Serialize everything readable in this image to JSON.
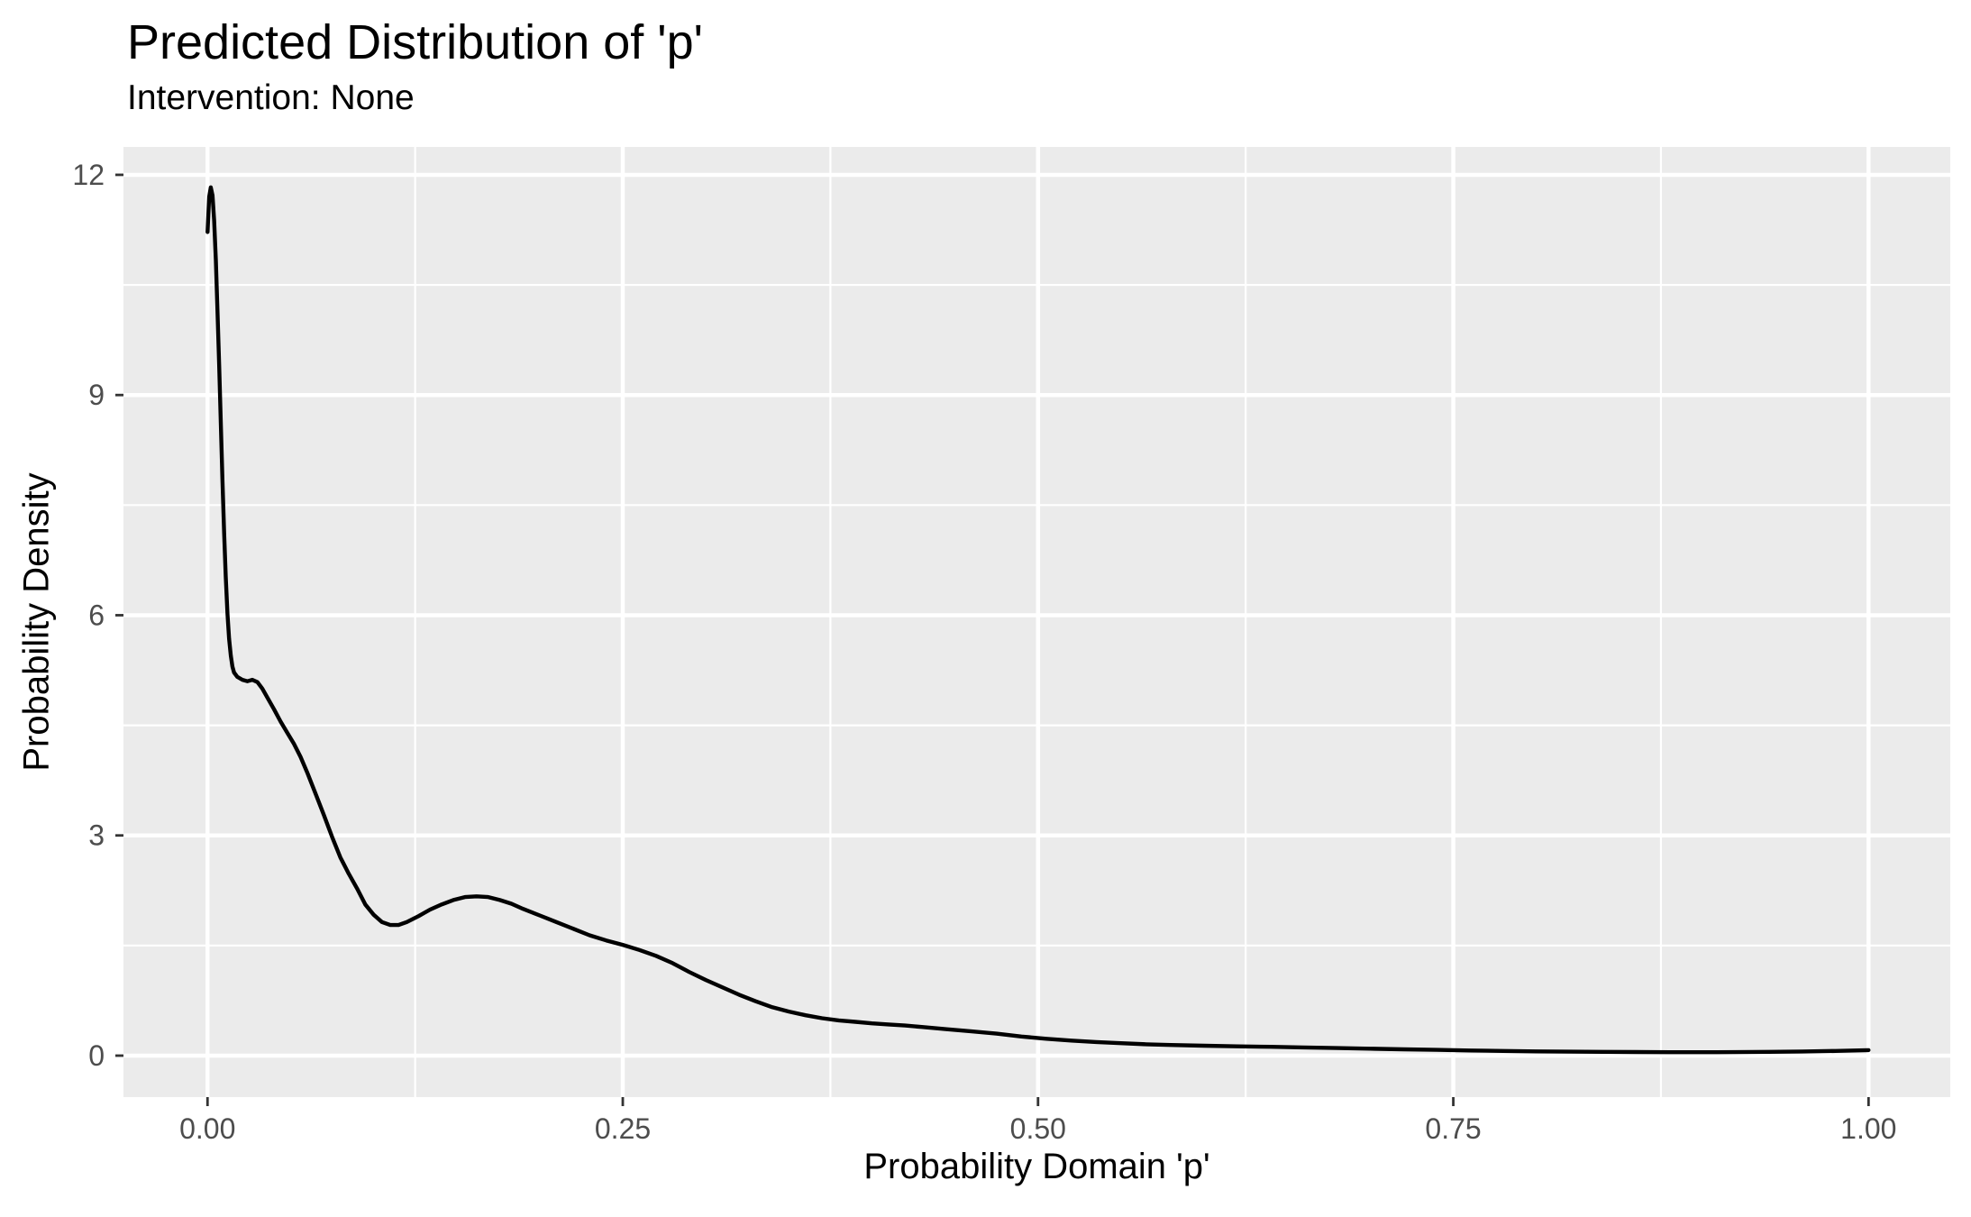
{
  "chart_data": {
    "type": "line",
    "style": "kernel-density-curve",
    "title": "Predicted Distribution of 'p'",
    "subtitle": "Intervention: None",
    "xlabel": "Probability Domain 'p'",
    "ylabel": "Probability Density",
    "legend": "none",
    "grid": "major+minor",
    "xlim": [
      -0.0506,
      1.0492
    ],
    "ylim": [
      -0.565,
      12.38
    ],
    "x_axis": {
      "tick_values": [
        0,
        0.25,
        0.5,
        0.75,
        1.0
      ],
      "tick_labels": [
        "0.00",
        "0.25",
        "0.50",
        "0.75",
        "1.00"
      ],
      "minor_tick_values": [
        0.125,
        0.375,
        0.625,
        0.875
      ]
    },
    "y_axis": {
      "tick_values": [
        0,
        3,
        6,
        9,
        12
      ],
      "tick_labels": [
        "0",
        "3",
        "6",
        "9",
        "12"
      ],
      "minor_tick_values": [
        1.5,
        4.5,
        7.5,
        10.5
      ]
    },
    "colors": {
      "panel_background": "#EBEBEB",
      "gridline": "#FFFFFF",
      "curve": "#000000",
      "tick_mark": "#333333",
      "tick_label": "#4D4D4D",
      "title_text": "#000000"
    },
    "series": [
      {
        "name": "density",
        "points": [
          [
            0.0,
            11.22
          ],
          [
            0.001,
            11.7
          ],
          [
            0.002,
            11.83
          ],
          [
            0.003,
            11.72
          ],
          [
            0.004,
            11.38
          ],
          [
            0.005,
            10.84
          ],
          [
            0.006,
            10.15
          ],
          [
            0.007,
            9.4
          ],
          [
            0.008,
            8.62
          ],
          [
            0.009,
            7.85
          ],
          [
            0.01,
            7.12
          ],
          [
            0.011,
            6.52
          ],
          [
            0.012,
            6.02
          ],
          [
            0.013,
            5.68
          ],
          [
            0.014,
            5.45
          ],
          [
            0.015,
            5.3
          ],
          [
            0.016,
            5.22
          ],
          [
            0.018,
            5.16
          ],
          [
            0.021,
            5.12
          ],
          [
            0.024,
            5.1
          ],
          [
            0.027,
            5.12
          ],
          [
            0.03,
            5.09
          ],
          [
            0.033,
            5.0
          ],
          [
            0.036,
            4.88
          ],
          [
            0.04,
            4.72
          ],
          [
            0.044,
            4.55
          ],
          [
            0.048,
            4.4
          ],
          [
            0.052,
            4.25
          ],
          [
            0.056,
            4.07
          ],
          [
            0.06,
            3.86
          ],
          [
            0.065,
            3.57
          ],
          [
            0.07,
            3.28
          ],
          [
            0.075,
            2.98
          ],
          [
            0.08,
            2.7
          ],
          [
            0.085,
            2.48
          ],
          [
            0.09,
            2.28
          ],
          [
            0.095,
            2.06
          ],
          [
            0.1,
            1.92
          ],
          [
            0.105,
            1.82
          ],
          [
            0.11,
            1.78
          ],
          [
            0.115,
            1.78
          ],
          [
            0.12,
            1.82
          ],
          [
            0.127,
            1.9
          ],
          [
            0.134,
            1.99
          ],
          [
            0.141,
            2.06
          ],
          [
            0.148,
            2.12
          ],
          [
            0.155,
            2.16
          ],
          [
            0.162,
            2.17
          ],
          [
            0.169,
            2.16
          ],
          [
            0.176,
            2.12
          ],
          [
            0.183,
            2.07
          ],
          [
            0.19,
            2.0
          ],
          [
            0.2,
            1.91
          ],
          [
            0.21,
            1.82
          ],
          [
            0.22,
            1.73
          ],
          [
            0.23,
            1.64
          ],
          [
            0.24,
            1.57
          ],
          [
            0.25,
            1.51
          ],
          [
            0.26,
            1.44
          ],
          [
            0.27,
            1.36
          ],
          [
            0.28,
            1.26
          ],
          [
            0.29,
            1.14
          ],
          [
            0.3,
            1.03
          ],
          [
            0.31,
            0.93
          ],
          [
            0.32,
            0.83
          ],
          [
            0.33,
            0.74
          ],
          [
            0.34,
            0.66
          ],
          [
            0.35,
            0.6
          ],
          [
            0.36,
            0.55
          ],
          [
            0.37,
            0.51
          ],
          [
            0.38,
            0.48
          ],
          [
            0.39,
            0.46
          ],
          [
            0.4,
            0.44
          ],
          [
            0.41,
            0.425
          ],
          [
            0.42,
            0.41
          ],
          [
            0.43,
            0.39
          ],
          [
            0.445,
            0.36
          ],
          [
            0.46,
            0.33
          ],
          [
            0.475,
            0.3
          ],
          [
            0.49,
            0.26
          ],
          [
            0.505,
            0.23
          ],
          [
            0.52,
            0.205
          ],
          [
            0.535,
            0.185
          ],
          [
            0.55,
            0.17
          ],
          [
            0.565,
            0.155
          ],
          [
            0.58,
            0.145
          ],
          [
            0.6,
            0.135
          ],
          [
            0.62,
            0.127
          ],
          [
            0.64,
            0.12
          ],
          [
            0.66,
            0.112
          ],
          [
            0.68,
            0.103
          ],
          [
            0.7,
            0.094
          ],
          [
            0.72,
            0.086
          ],
          [
            0.74,
            0.078
          ],
          [
            0.76,
            0.07
          ],
          [
            0.78,
            0.064
          ],
          [
            0.8,
            0.058
          ],
          [
            0.82,
            0.054
          ],
          [
            0.84,
            0.051
          ],
          [
            0.86,
            0.049
          ],
          [
            0.88,
            0.047
          ],
          [
            0.9,
            0.047
          ],
          [
            0.92,
            0.048
          ],
          [
            0.94,
            0.051
          ],
          [
            0.96,
            0.056
          ],
          [
            0.98,
            0.064
          ],
          [
            1.0,
            0.075
          ]
        ]
      }
    ]
  }
}
